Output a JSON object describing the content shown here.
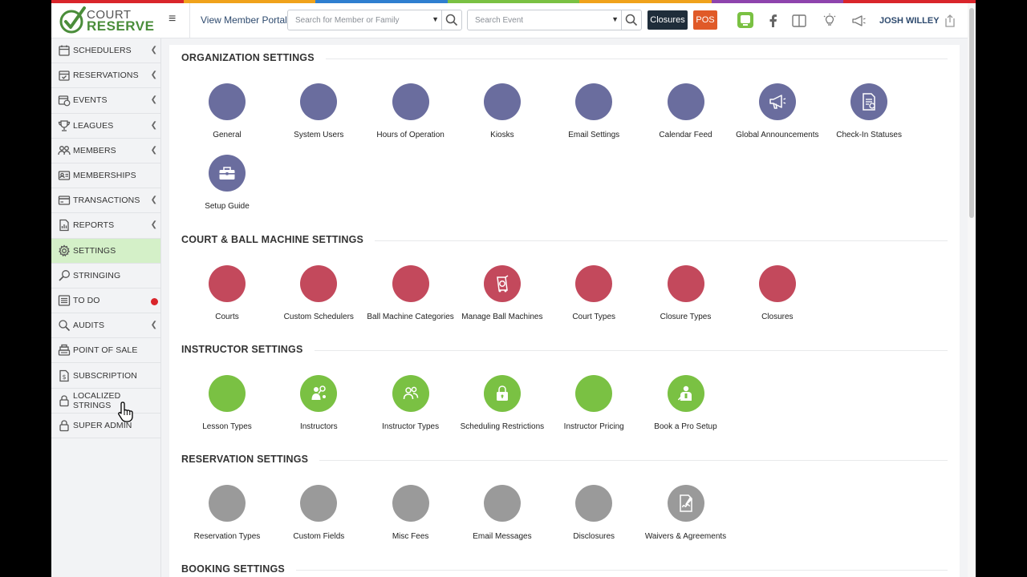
{
  "colors": {
    "org": "#6a6d9e",
    "court": "#c3495c",
    "instructor": "#7ac143",
    "reservation": "#9a9a9a",
    "rainbow": [
      "#d9252b",
      "#f0a21b",
      "#2f7fd0",
      "#7ac143",
      "#f0a21b",
      "#8e44ad",
      "#d9252b"
    ]
  },
  "logo": {
    "line1": "COURT",
    "line2": "RESERVE"
  },
  "topbar": {
    "view_portal": "View Member Portal",
    "search_member_placeholder": "Search for Member or Family",
    "search_event_placeholder": "Search Event",
    "closures": "Closures",
    "pos": "POS",
    "user": "JOSH WILLEY"
  },
  "sidebar": {
    "items": [
      {
        "label": "SCHEDULERS",
        "icon": "calendar-icon",
        "chevron": true
      },
      {
        "label": "RESERVATIONS",
        "icon": "calendar-check-icon",
        "chevron": true
      },
      {
        "label": "EVENTS",
        "icon": "calendar-clock-icon",
        "chevron": true
      },
      {
        "label": "LEAGUES",
        "icon": "trophy-icon",
        "chevron": true
      },
      {
        "label": "MEMBERS",
        "icon": "users-icon",
        "chevron": true
      },
      {
        "label": "MEMBERSHIPS",
        "icon": "id-card-icon",
        "chevron": false
      },
      {
        "label": "TRANSACTIONS",
        "icon": "credit-card-icon",
        "chevron": true
      },
      {
        "label": "REPORTS",
        "icon": "report-icon",
        "chevron": true
      },
      {
        "label": "SETTINGS",
        "icon": "gear-icon",
        "chevron": false,
        "active": true
      },
      {
        "label": "STRINGING",
        "icon": "racket-icon",
        "chevron": false
      },
      {
        "label": "TO DO",
        "icon": "list-icon",
        "chevron": false,
        "dot": true
      },
      {
        "label": "AUDITS",
        "icon": "search-icon",
        "chevron": true
      },
      {
        "label": "POINT OF SALE",
        "icon": "cash-register-icon",
        "chevron": false
      },
      {
        "label": "SUBSCRIPTION",
        "icon": "dollar-doc-icon",
        "chevron": false
      },
      {
        "label": "LOCALIZED STRINGS",
        "icon": "lock-icon",
        "chevron": false
      },
      {
        "label": "SUPER ADMIN",
        "icon": "lock-icon",
        "chevron": false
      }
    ]
  },
  "sections": [
    {
      "title": "ORGANIZATION SETTINGS",
      "color": "org",
      "items": [
        {
          "label": "General",
          "icon": ""
        },
        {
          "label": "System Users",
          "icon": ""
        },
        {
          "label": "Hours of Operation",
          "icon": ""
        },
        {
          "label": "Kiosks",
          "icon": ""
        },
        {
          "label": "Email Settings",
          "icon": ""
        },
        {
          "label": "Calendar Feed",
          "icon": ""
        },
        {
          "label": "Global Announcements",
          "icon": "megaphone-icon"
        },
        {
          "label": "Check-In Statuses",
          "icon": "document-icon"
        },
        {
          "label": "Setup Guide",
          "icon": "toolbox-icon"
        }
      ]
    },
    {
      "title": "COURT & BALL MACHINE SETTINGS",
      "color": "court",
      "items": [
        {
          "label": "Courts",
          "icon": ""
        },
        {
          "label": "Custom Schedulers",
          "icon": ""
        },
        {
          "label": "Ball Machine Categories",
          "icon": ""
        },
        {
          "label": "Manage Ball Machines",
          "icon": "ball-machine-icon"
        },
        {
          "label": "Court Types",
          "icon": ""
        },
        {
          "label": "Closure Types",
          "icon": ""
        },
        {
          "label": "Closures",
          "icon": ""
        }
      ]
    },
    {
      "title": "INSTRUCTOR SETTINGS",
      "color": "instructor",
      "items": [
        {
          "label": "Lesson Types",
          "icon": ""
        },
        {
          "label": "Instructors",
          "icon": "instructors-icon"
        },
        {
          "label": "Instructor Types",
          "icon": "group-icon"
        },
        {
          "label": "Scheduling Restrictions",
          "icon": "lock-icon"
        },
        {
          "label": "Instructor Pricing",
          "icon": ""
        },
        {
          "label": "Book a Pro Setup",
          "icon": "coach-icon"
        }
      ]
    },
    {
      "title": "RESERVATION SETTINGS",
      "color": "reservation",
      "items": [
        {
          "label": "Reservation Types",
          "icon": ""
        },
        {
          "label": "Custom Fields",
          "icon": ""
        },
        {
          "label": "Misc Fees",
          "icon": ""
        },
        {
          "label": "Email Messages",
          "icon": ""
        },
        {
          "label": "Disclosures",
          "icon": ""
        },
        {
          "label": "Waivers & Agreements",
          "icon": "signature-icon"
        }
      ]
    },
    {
      "title": "BOOKING SETTINGS",
      "color": "reservation",
      "items": []
    }
  ]
}
